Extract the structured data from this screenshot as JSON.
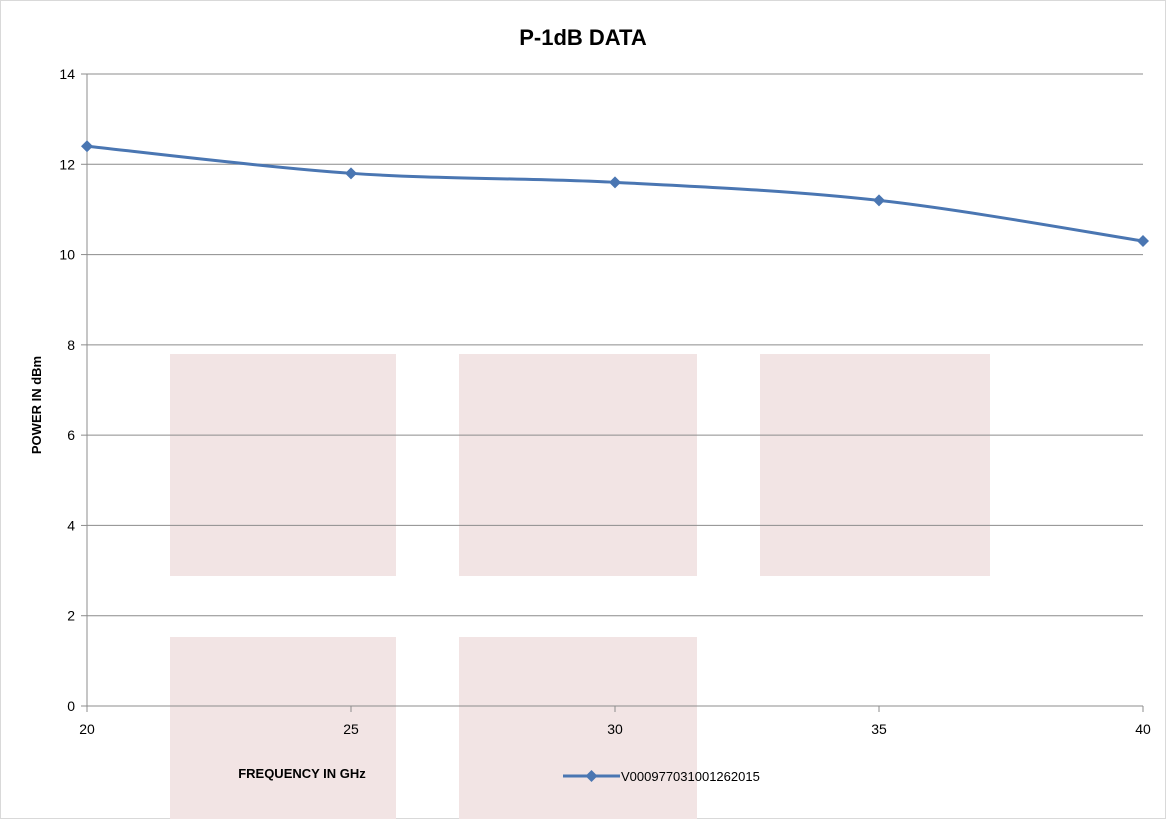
{
  "chart_data": {
    "type": "line",
    "title": "P-1dB DATA",
    "xlabel": "FREQUENCY IN GHz",
    "ylabel": "POWER IN dBm",
    "xlim": [
      20,
      40
    ],
    "ylim": [
      0,
      14
    ],
    "x_ticks": [
      20,
      25,
      30,
      35,
      40
    ],
    "y_ticks": [
      0,
      2,
      4,
      6,
      8,
      10,
      12,
      14
    ],
    "x_tick_labels": [
      "20",
      "25",
      "30",
      "35",
      "40"
    ],
    "y_tick_labels": [
      "0",
      "2",
      "4",
      "6",
      "8",
      "10",
      "12",
      "14"
    ],
    "grid": "horizontal",
    "legend_position": "bottom",
    "series": [
      {
        "name": "V000977031001262015",
        "color": "#4a76b2",
        "marker": "diamond",
        "x": [
          20,
          25,
          30,
          35,
          40
        ],
        "values": [
          12.4,
          11.8,
          11.6,
          11.2,
          10.3
        ]
      }
    ]
  },
  "colors": {
    "line": "#4a76b2",
    "grid": "#8c8c8c",
    "watermark": "#f2e4e4"
  }
}
